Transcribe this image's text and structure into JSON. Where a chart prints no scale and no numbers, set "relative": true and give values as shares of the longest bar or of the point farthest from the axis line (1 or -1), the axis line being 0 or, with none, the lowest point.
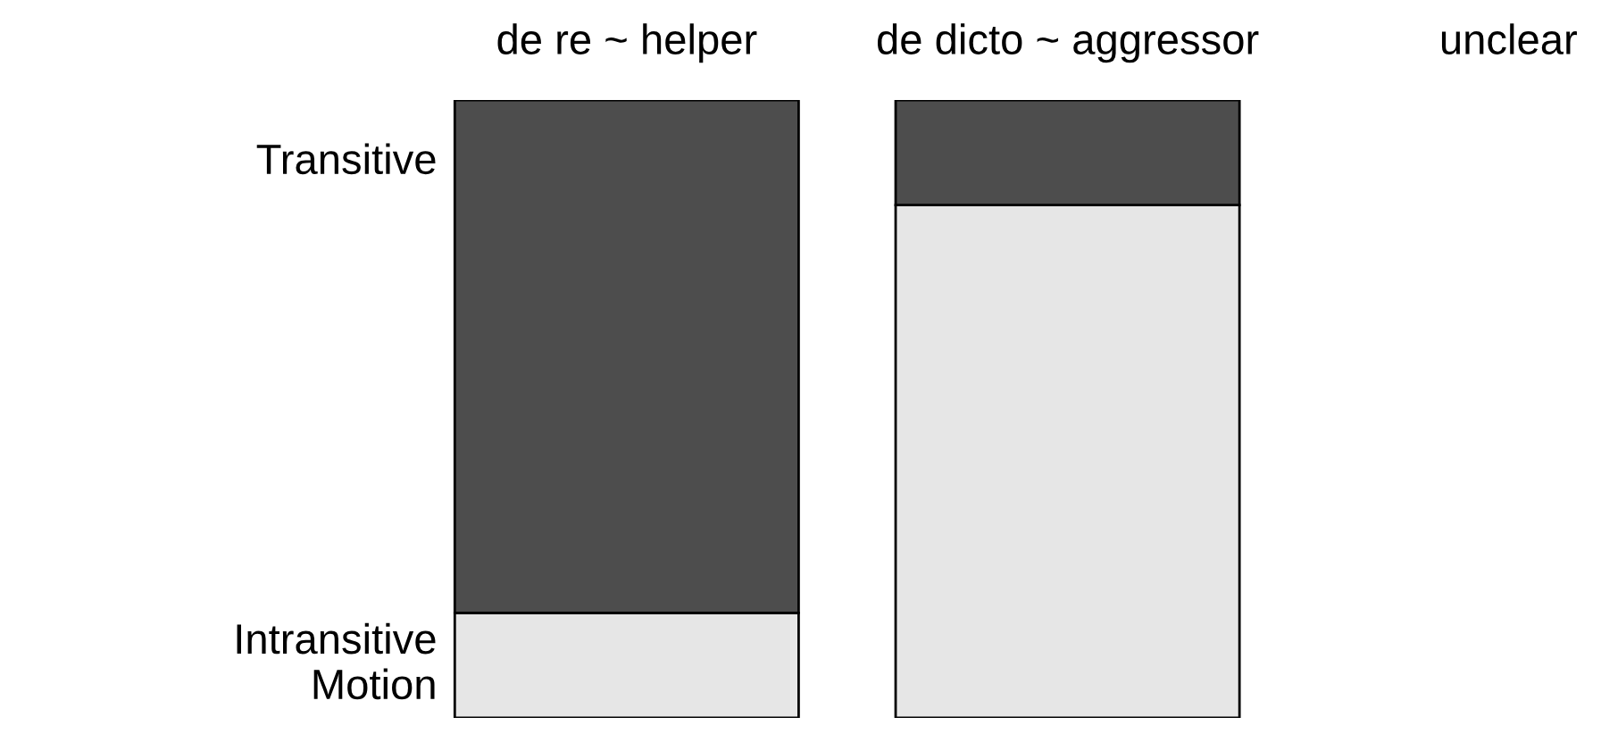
{
  "chart_data": {
    "type": "bar",
    "stacked": true,
    "relative": true,
    "categories": [
      "de re ~ helper",
      "de dicto ~ aggressor",
      "unclear"
    ],
    "series": [
      {
        "name": "Intransitive\nMotion",
        "color": "#e6e6e6",
        "values": [
          0.17,
          0.83,
          null
        ]
      },
      {
        "name": "Transitive",
        "color": "#4d4d4d",
        "values": [
          0.83,
          0.17,
          null
        ]
      }
    ],
    "legend": false,
    "grid": false
  }
}
